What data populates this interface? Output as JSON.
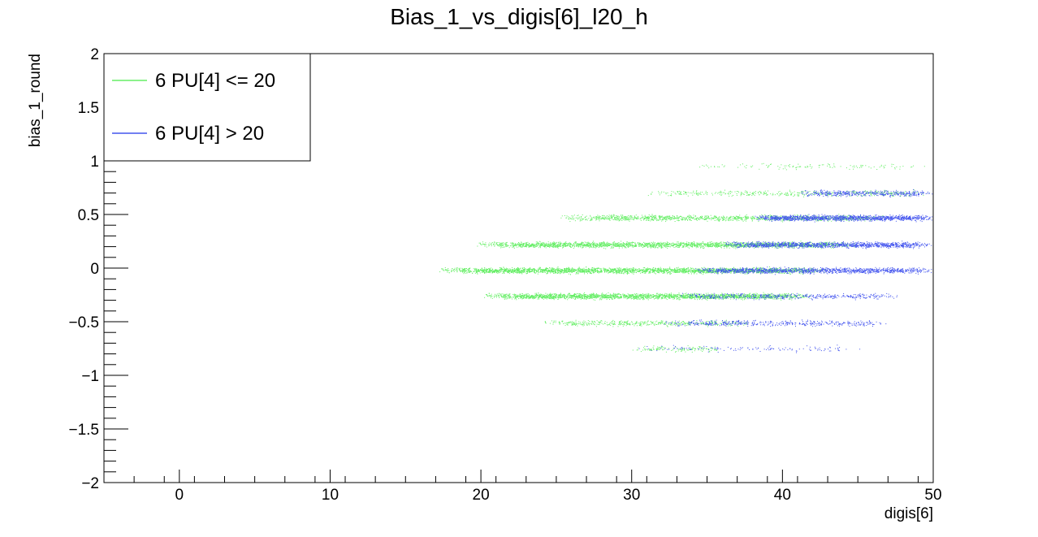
{
  "chart_data": {
    "type": "scatter",
    "title": "Bias_1_vs_digis[6]_l20_h",
    "xlabel": "digis[6]",
    "ylabel": "bias_1_round",
    "xlim": [
      -5,
      50
    ],
    "ylim": [
      -2,
      2
    ],
    "x_ticks": [
      0,
      10,
      20,
      30,
      40,
      50
    ],
    "x_tick_labels": [
      "0",
      "10",
      "20",
      "30",
      "40",
      "50"
    ],
    "y_ticks": [
      -2,
      -1.5,
      -1,
      -0.5,
      0,
      0.5,
      1,
      1.5,
      2
    ],
    "y_tick_labels": [
      "−2",
      "−1.5",
      "−1",
      "−0.5",
      "0",
      "0.5",
      "1",
      "1.5",
      "2"
    ],
    "grid": false,
    "legend_position": "top-left",
    "series": [
      {
        "name": "6 PU[4] <= 20",
        "color": "#66ee66",
        "bands": [
          {
            "y": 0.95,
            "x_range": [
              34,
              50
            ],
            "density": "sparse"
          },
          {
            "y": 0.7,
            "x_range": [
              31,
              50
            ],
            "density": "low"
          },
          {
            "y": 0.47,
            "x_range": [
              25,
              47
            ],
            "density": "medium"
          },
          {
            "y": 0.22,
            "x_range": [
              19.5,
              45
            ],
            "density": "high"
          },
          {
            "y": -0.02,
            "x_range": [
              17,
              43
            ],
            "density": "very-high"
          },
          {
            "y": -0.26,
            "x_range": [
              20,
              42
            ],
            "density": "high"
          },
          {
            "y": -0.51,
            "x_range": [
              24,
              38
            ],
            "density": "low"
          },
          {
            "y": -0.75,
            "x_range": [
              30,
              36
            ],
            "density": "sparse"
          }
        ]
      },
      {
        "name": "6 PU[4] > 20",
        "color": "#4455ee",
        "bands": [
          {
            "y": 0.7,
            "x_range": [
              41,
              50
            ],
            "density": "low"
          },
          {
            "y": 0.47,
            "x_range": [
              38,
              50
            ],
            "density": "medium"
          },
          {
            "y": 0.22,
            "x_range": [
              36,
              50
            ],
            "density": "medium"
          },
          {
            "y": -0.02,
            "x_range": [
              34,
              50
            ],
            "density": "medium"
          },
          {
            "y": -0.26,
            "x_range": [
              33,
              48
            ],
            "density": "low"
          },
          {
            "y": -0.51,
            "x_range": [
              32,
              47
            ],
            "density": "low"
          },
          {
            "y": -0.75,
            "x_range": [
              30,
              46
            ],
            "density": "sparse"
          }
        ]
      }
    ]
  }
}
